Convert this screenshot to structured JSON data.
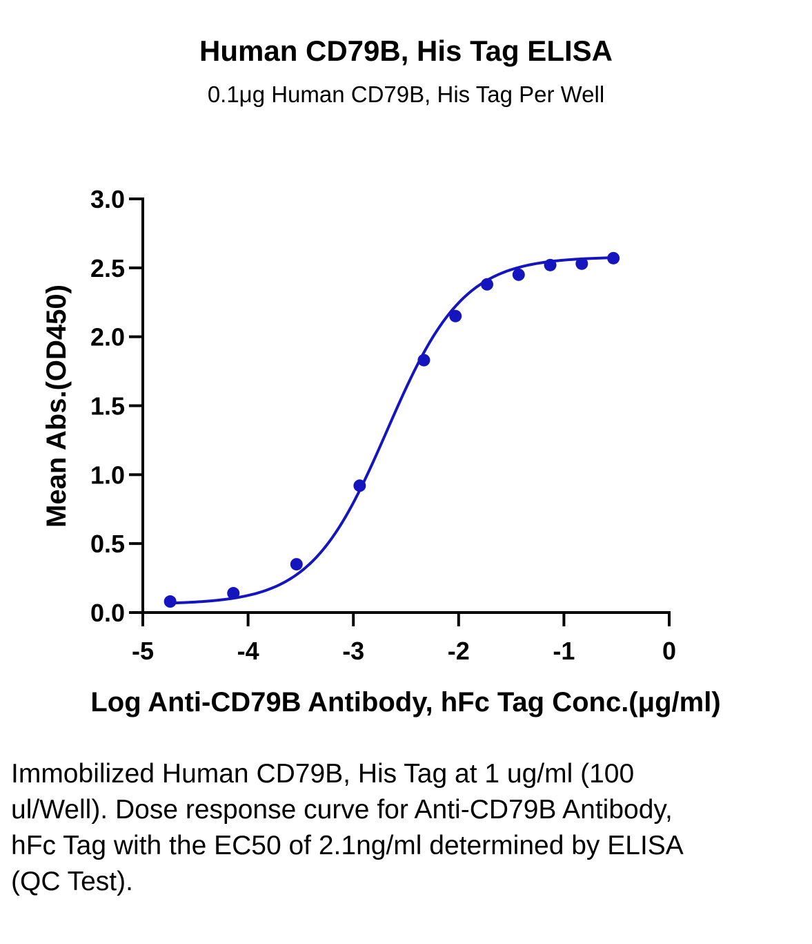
{
  "chart_data": {
    "type": "scatter",
    "title": "Human CD79B, His Tag ELISA",
    "subtitle": "0.1μg Human CD79B, His Tag Per Well",
    "xlabel": "Log  Anti-CD79B Antibody, hFc Tag Conc.(μg/ml)",
    "ylabel": "Mean Abs.(OD450)",
    "xlim": [
      -5,
      0
    ],
    "ylim": [
      0,
      3.0
    ],
    "x_ticks": [
      "-5",
      "-4",
      "-3",
      "-2",
      "-1",
      "0"
    ],
    "y_ticks": [
      "0.0",
      "0.5",
      "1.0",
      "1.5",
      "2.0",
      "2.5",
      "3.0"
    ],
    "color": "#1515c0",
    "series": [
      {
        "x": [
          -4.74,
          -4.14,
          -3.54,
          -2.94,
          -2.33,
          -2.03,
          -1.73,
          -1.43,
          -1.13,
          -0.83,
          -0.53
        ],
        "y": [
          0.08,
          0.14,
          0.35,
          0.92,
          1.83,
          2.15,
          2.38,
          2.45,
          2.52,
          2.53,
          2.57
        ]
      }
    ],
    "fit": {
      "model": "4PL",
      "bottom": 0.06,
      "top": 2.58,
      "logEC50": -2.68,
      "hill": 1.2
    }
  },
  "caption": "Immobilized Human CD79B, His Tag at 1 ug/ml (100 ul/Well). Dose response curve for Anti-CD79B Antibody, hFc Tag with the EC50 of 2.1ng/ml determined by ELISA (QC Test)."
}
